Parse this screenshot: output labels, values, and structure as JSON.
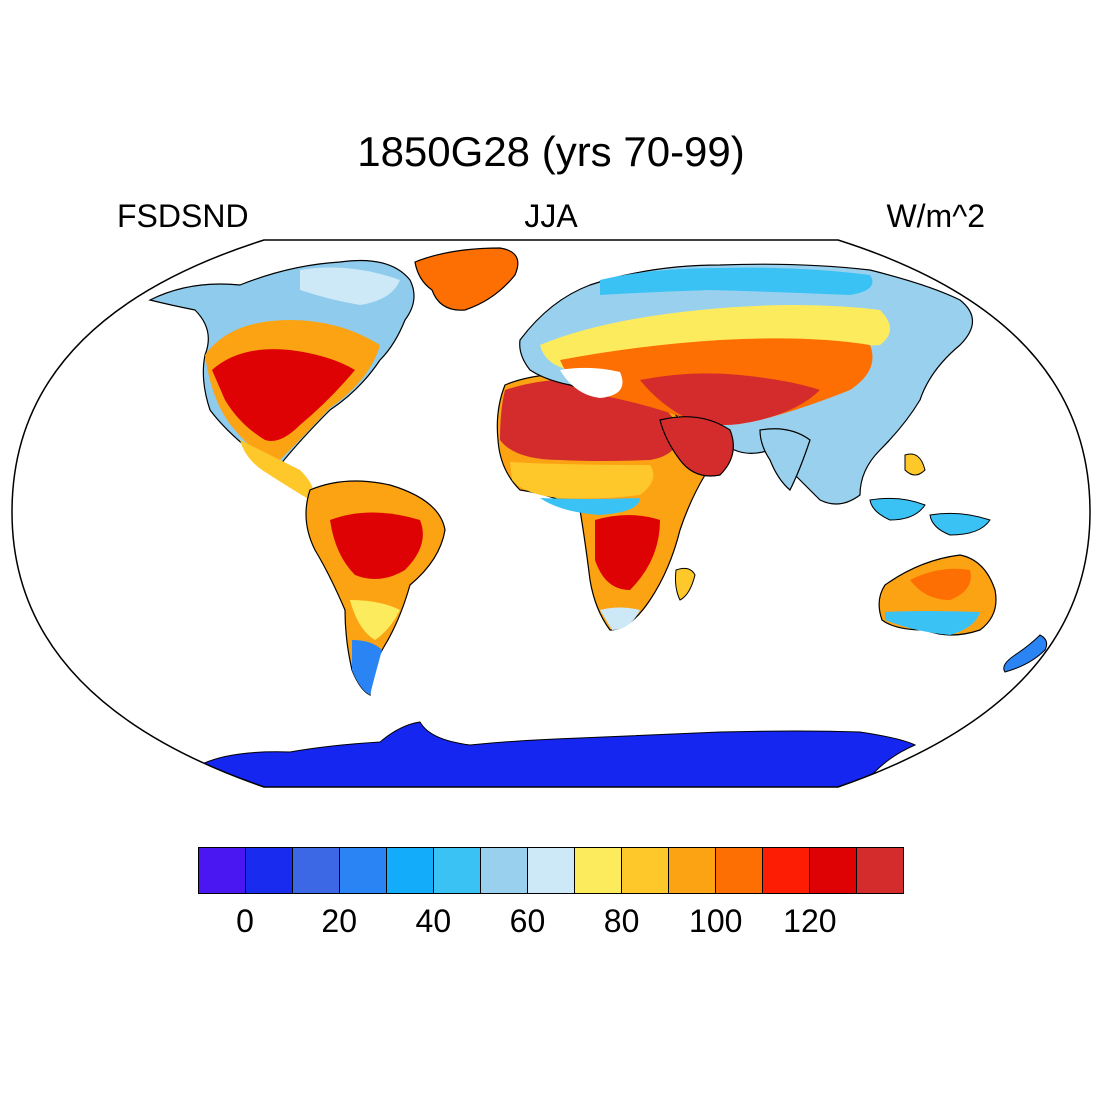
{
  "title": "1850G28 (yrs 70-99)",
  "left_label": "FSDSND",
  "center_label": "JJA",
  "right_label": "W/m^2",
  "colorbar": {
    "colors": [
      "#4a17f3",
      "#1a2bf0",
      "#3d68e5",
      "#2a84f4",
      "#13acfa",
      "#3bc2f5",
      "#98d0ee",
      "#cde9f7",
      "#fdeb5e",
      "#fec82a",
      "#fca313",
      "#fd6e03",
      "#fc1d04",
      "#df0204",
      "#d42c2c"
    ],
    "tick_labels": [
      "0",
      "20",
      "40",
      "60",
      "80",
      "100",
      "120"
    ]
  },
  "map": {
    "projection": "Robinson",
    "ocean_color": "#ffffff",
    "antarctica_color": "#1626f1",
    "coastline_color": "#000000"
  }
}
